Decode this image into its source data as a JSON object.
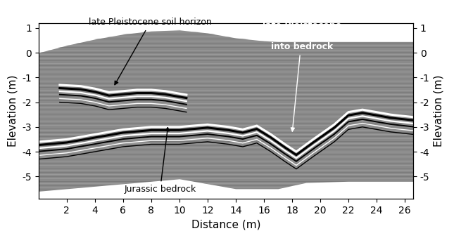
{
  "chart_data": {
    "type": "profile",
    "xlabel": "Distance (m)",
    "ylabel": "Elevation (m)",
    "y2label": "Elevation (m)",
    "xlim": [
      0,
      26.6
    ],
    "xticks": [
      2,
      4,
      6,
      8,
      10,
      12,
      14,
      16,
      18,
      20,
      22,
      24,
      26
    ],
    "ylim": [
      -5.9,
      1.2
    ],
    "yticks": [
      -5,
      -4,
      -3,
      -2,
      -1,
      0,
      1
    ],
    "y2lim": [
      -5.9,
      1.2
    ],
    "y2ticks": [
      -5,
      -4,
      -3,
      -2,
      -1,
      0,
      1
    ],
    "surface": {
      "x": [
        0,
        2,
        4,
        6,
        8,
        10,
        12,
        14,
        16,
        17,
        20,
        24,
        26.6
      ],
      "values": [
        0.0,
        0.3,
        0.55,
        0.75,
        0.88,
        0.92,
        0.8,
        0.6,
        0.48,
        0.45,
        0.45,
        0.45,
        0.45
      ]
    },
    "base": {
      "x": [
        0,
        4,
        8,
        10,
        12,
        14,
        17,
        19,
        22,
        26.6
      ],
      "values": [
        -5.6,
        -5.4,
        -5.2,
        -5.1,
        -5.3,
        -5.5,
        -5.5,
        -5.25,
        -5.2,
        -5.2
      ]
    },
    "series": [
      {
        "name": "soil horizon",
        "x": [
          1.5,
          3,
          4,
          5,
          6,
          7,
          8,
          9,
          10.5
        ],
        "values": [
          -1.3,
          -1.35,
          -1.45,
          -1.6,
          -1.55,
          -1.5,
          -1.5,
          -1.55,
          -1.7
        ]
      },
      {
        "name": "bedrock",
        "x": [
          0,
          2,
          4,
          6,
          8,
          10,
          12,
          13.5,
          14.5,
          15.5,
          16.5,
          17.5,
          18.3,
          19.5,
          21,
          22,
          23,
          24,
          25,
          26.6
        ],
        "values": [
          -3.6,
          -3.5,
          -3.3,
          -3.1,
          -3.0,
          -3.0,
          -2.9,
          -3.0,
          -3.1,
          -2.95,
          -3.3,
          -3.7,
          -4.0,
          -3.5,
          -2.9,
          -2.4,
          -2.3,
          -2.4,
          -2.5,
          -2.6
        ]
      }
    ],
    "annotations": [
      {
        "text": "late Pleistocene soil horizon",
        "xy": [
          5.3,
          -1.4
        ]
      },
      {
        "text": "Jurassic bedrock",
        "xy": [
          9.2,
          -2.9
        ]
      },
      {
        "text": "late Pleistocene\nchannel incised\ninto bedrock",
        "xy": [
          18.0,
          -3.3
        ]
      }
    ]
  }
}
